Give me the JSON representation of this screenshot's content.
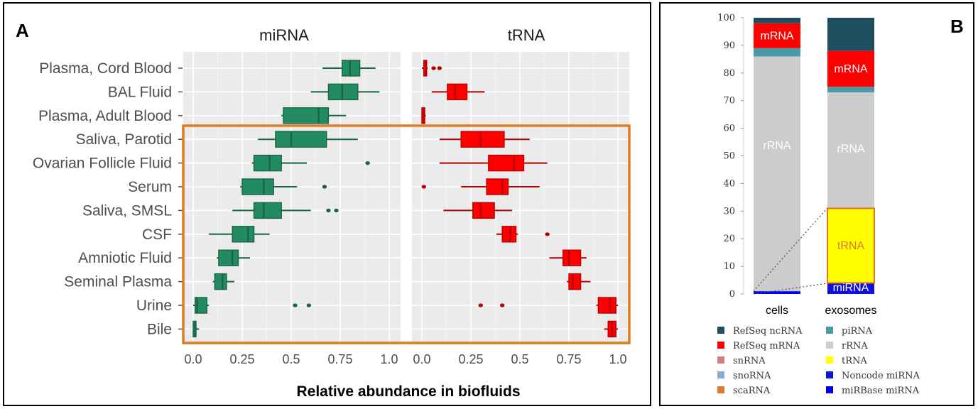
{
  "figure": {
    "panel_a_letter": "A",
    "panel_b_letter": "B"
  },
  "chart_data": [
    {
      "type": "box",
      "title": "",
      "xlabel": "Relative abundance in biofluids",
      "ylabel": "",
      "xlim": [
        0,
        1
      ],
      "x_ticks": [
        "0.0",
        "0.25",
        "0.5",
        "0.75",
        "1.0"
      ],
      "highlight_note": "orange box around Saliva, Parotid to Bile",
      "categories": [
        "Plasma, Cord Blood",
        "BAL Fluid",
        "Plasma, Adult Blood",
        "Saliva, Parotid",
        "Ovarian Follicle Fluid",
        "Serum",
        "Saliva, SMSL",
        "CSF",
        "Amniotic Fluid",
        "Seminal Plasma",
        "Urine",
        "Bile"
      ],
      "facets": [
        {
          "name": "miRNA",
          "color": "#238b62",
          "boxes": [
            {
              "whisker_low": 0.66,
              "q1": 0.76,
              "median": 0.8,
              "q3": 0.85,
              "whisker_high": 0.93,
              "outliers": []
            },
            {
              "whisker_low": 0.6,
              "q1": 0.69,
              "median": 0.76,
              "q3": 0.84,
              "whisker_high": 0.95,
              "outliers": []
            },
            {
              "whisker_low": 0.45,
              "q1": 0.46,
              "median": 0.64,
              "q3": 0.69,
              "whisker_high": 0.78,
              "outliers": []
            },
            {
              "whisker_low": 0.33,
              "q1": 0.42,
              "median": 0.5,
              "q3": 0.68,
              "whisker_high": 0.84,
              "outliers": []
            },
            {
              "whisker_low": 0.3,
              "q1": 0.31,
              "median": 0.39,
              "q3": 0.45,
              "whisker_high": 0.58,
              "outliers": [
                0.89
              ]
            },
            {
              "whisker_low": 0.24,
              "q1": 0.25,
              "median": 0.36,
              "q3": 0.41,
              "whisker_high": 0.53,
              "outliers": [
                0.67
              ]
            },
            {
              "whisker_low": 0.2,
              "q1": 0.31,
              "median": 0.36,
              "q3": 0.45,
              "whisker_high": 0.6,
              "outliers": [
                0.69,
                0.73
              ]
            },
            {
              "whisker_low": 0.08,
              "q1": 0.2,
              "median": 0.28,
              "q3": 0.31,
              "whisker_high": 0.39,
              "outliers": []
            },
            {
              "whisker_low": 0.12,
              "q1": 0.13,
              "median": 0.2,
              "q3": 0.23,
              "whisker_high": 0.29,
              "outliers": []
            },
            {
              "whisker_low": 0.1,
              "q1": 0.11,
              "median": 0.15,
              "q3": 0.17,
              "whisker_high": 0.21,
              "outliers": []
            },
            {
              "whisker_low": 0.0,
              "q1": 0.01,
              "median": 0.02,
              "q3": 0.07,
              "whisker_high": 0.08,
              "outliers": [
                0.52,
                0.59
              ]
            },
            {
              "whisker_low": 0.0,
              "q1": 0.0,
              "median": 0.01,
              "q3": 0.01,
              "whisker_high": 0.03,
              "outliers": []
            }
          ]
        },
        {
          "name": "tRNA",
          "color": "#ff0000",
          "boxes": [
            {
              "whisker_low": 0.0,
              "q1": 0.01,
              "median": 0.02,
              "q3": 0.02,
              "whisker_high": 0.03,
              "outliers": [
                0.06,
                0.09
              ]
            },
            {
              "whisker_low": 0.05,
              "q1": 0.13,
              "median": 0.17,
              "q3": 0.23,
              "whisker_high": 0.32,
              "outliers": []
            },
            {
              "whisker_low": 0.0,
              "q1": 0.0,
              "median": 0.01,
              "q3": 0.01,
              "whisker_high": 0.02,
              "outliers": []
            },
            {
              "whisker_low": 0.09,
              "q1": 0.2,
              "median": 0.3,
              "q3": 0.42,
              "whisker_high": 0.55,
              "outliers": []
            },
            {
              "whisker_low": 0.09,
              "q1": 0.34,
              "median": 0.47,
              "q3": 0.52,
              "whisker_high": 0.64,
              "outliers": []
            },
            {
              "whisker_low": 0.2,
              "q1": 0.33,
              "median": 0.41,
              "q3": 0.44,
              "whisker_high": 0.6,
              "outliers": [
                0.01
              ]
            },
            {
              "whisker_low": 0.11,
              "q1": 0.26,
              "median": 0.3,
              "q3": 0.37,
              "whisker_high": 0.46,
              "outliers": []
            },
            {
              "whisker_low": 0.38,
              "q1": 0.41,
              "median": 0.45,
              "q3": 0.48,
              "whisker_high": 0.49,
              "outliers": [
                0.64
              ]
            },
            {
              "whisker_low": 0.65,
              "q1": 0.72,
              "median": 0.75,
              "q3": 0.81,
              "whisker_high": 0.84,
              "outliers": []
            },
            {
              "whisker_low": 0.74,
              "q1": 0.75,
              "median": 0.77,
              "q3": 0.81,
              "whisker_high": 0.86,
              "outliers": []
            },
            {
              "whisker_low": 0.89,
              "q1": 0.9,
              "median": 0.96,
              "q3": 0.99,
              "whisker_high": 1.0,
              "outliers": [
                0.3,
                0.41
              ]
            },
            {
              "whisker_low": 0.93,
              "q1": 0.95,
              "median": 0.97,
              "q3": 0.99,
              "whisker_high": 1.0,
              "outliers": []
            }
          ]
        }
      ]
    },
    {
      "type": "stacked_bar",
      "title": "",
      "ylim": [
        0,
        100
      ],
      "y_ticks": [
        "0",
        "10",
        "20",
        "30",
        "40",
        "50",
        "60",
        "70",
        "80",
        "90",
        "100"
      ],
      "categories": [
        "cells",
        "exosomes"
      ],
      "series": [
        {
          "name": "miRBase miRNA",
          "color": "#0000ee",
          "values": [
            1,
            0
          ]
        },
        {
          "name": "Noncode miRNA",
          "color": "#1010d8",
          "values": [
            0,
            4
          ]
        },
        {
          "name": "tRNA",
          "color": "#ffff00",
          "values": [
            0,
            27
          ]
        },
        {
          "name": "rRNA",
          "color": "#cccccc",
          "values": [
            85,
            42
          ]
        },
        {
          "name": "piRNA",
          "color": "#4a98a8",
          "values": [
            3,
            2
          ]
        },
        {
          "name": "RefSeq mRNA",
          "color": "#ff0000",
          "values": [
            9,
            13
          ]
        },
        {
          "name": "snRNA",
          "color": "#cc8080",
          "values": [
            0,
            0
          ]
        },
        {
          "name": "snoRNA",
          "color": "#88aacc",
          "values": [
            0,
            0
          ]
        },
        {
          "name": "scaRNA",
          "color": "#d87a30",
          "values": [
            0,
            0
          ]
        },
        {
          "name": "RefSeq ncRNA",
          "color": "#1f4e5f",
          "values": [
            2,
            12
          ]
        }
      ],
      "segment_labels": [
        {
          "bar": "cells",
          "series": "RefSeq mRNA",
          "text": "mRNA",
          "color": "#ffffff"
        },
        {
          "bar": "cells",
          "series": "rRNA",
          "text": "rRNA",
          "color": "#ffffff"
        },
        {
          "bar": "exosomes",
          "series": "RefSeq mRNA",
          "text": "mRNA",
          "color": "#ffffff"
        },
        {
          "bar": "exosomes",
          "series": "rRNA",
          "text": "rRNA",
          "color": "#ffffff"
        },
        {
          "bar": "exosomes",
          "series": "tRNA",
          "text": "tRNA",
          "color": "#e07820"
        },
        {
          "bar": "exosomes",
          "series": "Noncode miRNA",
          "text": "miRNA",
          "color": "#ffffff"
        }
      ],
      "legend": {
        "left": [
          {
            "name": "RefSeq ncRNA",
            "color": "#1f4e5f"
          },
          {
            "name": "RefSeq mRNA",
            "color": "#ff0000"
          },
          {
            "name": "snRNA",
            "color": "#cc8080"
          },
          {
            "name": "snoRNA",
            "color": "#88aacc"
          },
          {
            "name": "scaRNA",
            "color": "#d87a30"
          }
        ],
        "right": [
          {
            "name": "piRNA",
            "color": "#4a98a8"
          },
          {
            "name": "rRNA",
            "color": "#cccccc"
          },
          {
            "name": "tRNA",
            "color": "#ffff00"
          },
          {
            "name": "Noncode miRNA",
            "color": "#1010d8"
          },
          {
            "name": "miRBase miRNA",
            "color": "#0000ee"
          }
        ]
      }
    }
  ]
}
